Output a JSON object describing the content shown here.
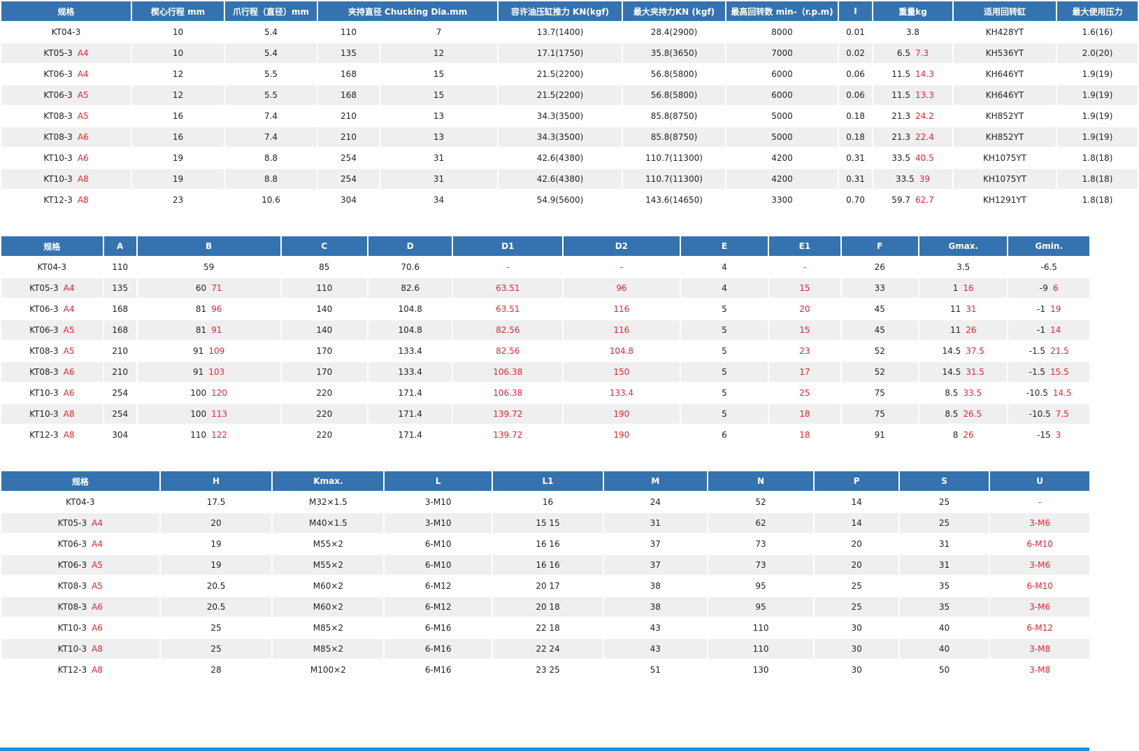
{
  "table1": {
    "headers": [
      "规格",
      "楔心行程 mm",
      "爪行程（直径）mm",
      "夹持直径 Chucking Dia.mm",
      "容许油压缸推力 KN(kgf)",
      "最大夹持力KN (kgf)",
      "最高回转数 min-（r.p.m)",
      "I",
      "重量kg",
      "适用回转缸",
      "最大使用压力"
    ],
    "rows": [
      {
        "model": "KT04-3",
        "suffix": "",
        "wedge": "10",
        "jaw": "5.4",
        "dia_max": "110",
        "dia_min": "7",
        "thrust": "13.7(1400)",
        "grip": "28.4(2900)",
        "rpm": "8000",
        "inertia": "0.01",
        "weight": "3.8",
        "weight_alt": "",
        "cylinder": "KH428YT",
        "pressure": "1.6(16)"
      },
      {
        "model": "KT05-3",
        "suffix": "A4",
        "wedge": "10",
        "jaw": "5.4",
        "dia_max": "135",
        "dia_min": "12",
        "thrust": "17.1(1750)",
        "grip": "35.8(3650)",
        "rpm": "7000",
        "inertia": "0.02",
        "weight": "6.5",
        "weight_alt": "7.3",
        "cylinder": "KH536YT",
        "pressure": "2.0(20)"
      },
      {
        "model": "KT06-3",
        "suffix": "A4",
        "wedge": "12",
        "jaw": "5.5",
        "dia_max": "168",
        "dia_min": "15",
        "thrust": "21.5(2200)",
        "grip": "56.8(5800)",
        "rpm": "6000",
        "inertia": "0.06",
        "weight": "11.5",
        "weight_alt": "14.3",
        "cylinder": "KH646YT",
        "pressure": "1.9(19)"
      },
      {
        "model": "KT06-3",
        "suffix": "A5",
        "wedge": "12",
        "jaw": "5.5",
        "dia_max": "168",
        "dia_min": "15",
        "thrust": "21.5(2200)",
        "grip": "56.8(5800)",
        "rpm": "6000",
        "inertia": "0.06",
        "weight": "11.5",
        "weight_alt": "13.3",
        "cylinder": "KH646YT",
        "pressure": "1.9(19)"
      },
      {
        "model": "KT08-3",
        "suffix": "A5",
        "wedge": "16",
        "jaw": "7.4",
        "dia_max": "210",
        "dia_min": "13",
        "thrust": "34.3(3500)",
        "grip": "85.8(8750)",
        "rpm": "5000",
        "inertia": "0.18",
        "weight": "21.3",
        "weight_alt": "24.2",
        "cylinder": "KH852YT",
        "pressure": "1.9(19)"
      },
      {
        "model": "KT08-3",
        "suffix": "A6",
        "wedge": "16",
        "jaw": "7.4",
        "dia_max": "210",
        "dia_min": "13",
        "thrust": "34.3(3500)",
        "grip": "85.8(8750)",
        "rpm": "5000",
        "inertia": "0.18",
        "weight": "21.3",
        "weight_alt": "22.4",
        "cylinder": "KH852YT",
        "pressure": "1.9(19)"
      },
      {
        "model": "KT10-3",
        "suffix": "A6",
        "wedge": "19",
        "jaw": "8.8",
        "dia_max": "254",
        "dia_min": "31",
        "thrust": "42.6(4380)",
        "grip": "110.7(11300)",
        "rpm": "4200",
        "inertia": "0.31",
        "weight": "33.5",
        "weight_alt": "40.5",
        "cylinder": "KH1075YT",
        "pressure": "1.8(18)"
      },
      {
        "model": "KT10-3",
        "suffix": "A8",
        "wedge": "19",
        "jaw": "8.8",
        "dia_max": "254",
        "dia_min": "31",
        "thrust": "42.6(4380)",
        "grip": "110.7(11300)",
        "rpm": "4200",
        "inertia": "0.31",
        "weight": "33.5",
        "weight_alt": "39",
        "cylinder": "KH1075YT",
        "pressure": "1.8(18)"
      },
      {
        "model": "KT12-3",
        "suffix": "A8",
        "wedge": "23",
        "jaw": "10.6",
        "dia_max": "304",
        "dia_min": "34",
        "thrust": "54.9(5600)",
        "grip": "143.6(14650)",
        "rpm": "3300",
        "inertia": "0.70",
        "weight": "59.7",
        "weight_alt": "62.7",
        "cylinder": "KH1291YT",
        "pressure": "1.8(18)"
      }
    ]
  },
  "table2": {
    "headers": [
      "规格",
      "A",
      "B",
      "C",
      "D",
      "D1",
      "D2",
      "E",
      "E1",
      "F",
      "Gmax.",
      "Gmin."
    ],
    "rows": [
      {
        "model": "KT04-3",
        "suffix": "",
        "A": "110",
        "B": "59",
        "B_alt": "",
        "C": "85",
        "D": "70.6",
        "D1": "-",
        "D2": "-",
        "E": "4",
        "E1": "-",
        "F": "26",
        "Gmax": "3.5",
        "Gmax_alt": "",
        "Gmin": "-6.5",
        "Gmin_alt": ""
      },
      {
        "model": "KT05-3",
        "suffix": "A4",
        "A": "135",
        "B": "60",
        "B_alt": "71",
        "C": "110",
        "D": "82.6",
        "D1": "63.51",
        "D2": "96",
        "E": "4",
        "E1": "15",
        "F": "33",
        "Gmax": "1",
        "Gmax_alt": "16",
        "Gmin": "-9",
        "Gmin_alt": "6"
      },
      {
        "model": "KT06-3",
        "suffix": "A4",
        "A": "168",
        "B": "81",
        "B_alt": "96",
        "C": "140",
        "D": "104.8",
        "D1": "63.51",
        "D2": "116",
        "E": "5",
        "E1": "20",
        "F": "45",
        "Gmax": "11",
        "Gmax_alt": "31",
        "Gmin": "-1",
        "Gmin_alt": "19"
      },
      {
        "model": "KT06-3",
        "suffix": "A5",
        "A": "168",
        "B": "81",
        "B_alt": "91",
        "C": "140",
        "D": "104.8",
        "D1": "82.56",
        "D2": "116",
        "E": "5",
        "E1": "15",
        "F": "45",
        "Gmax": "11",
        "Gmax_alt": "26",
        "Gmin": "-1",
        "Gmin_alt": "14"
      },
      {
        "model": "KT08-3",
        "suffix": "A5",
        "A": "210",
        "B": "91",
        "B_alt": "109",
        "C": "170",
        "D": "133.4",
        "D1": "82.56",
        "D2": "104.8",
        "E": "5",
        "E1": "23",
        "F": "52",
        "Gmax": "14.5",
        "Gmax_alt": "37.5",
        "Gmin": "-1.5",
        "Gmin_alt": "21.5"
      },
      {
        "model": "KT08-3",
        "suffix": "A6",
        "A": "210",
        "B": "91",
        "B_alt": "103",
        "C": "170",
        "D": "133.4",
        "D1": "106.38",
        "D2": "150",
        "E": "5",
        "E1": "17",
        "F": "52",
        "Gmax": "14.5",
        "Gmax_alt": "31.5",
        "Gmin": "-1.5",
        "Gmin_alt": "15.5"
      },
      {
        "model": "KT10-3",
        "suffix": "A6",
        "A": "254",
        "B": "100",
        "B_alt": "120",
        "C": "220",
        "D": "171.4",
        "D1": "106.38",
        "D2": "133.4",
        "E": "5",
        "E1": "25",
        "F": "75",
        "Gmax": "8.5",
        "Gmax_alt": "33.5",
        "Gmin": "-10.5",
        "Gmin_alt": "14.5"
      },
      {
        "model": "KT10-3",
        "suffix": "A8",
        "A": "254",
        "B": "100",
        "B_alt": "113",
        "C": "220",
        "D": "171.4",
        "D1": "139.72",
        "D2": "190",
        "E": "5",
        "E1": "18",
        "F": "75",
        "Gmax": "8.5",
        "Gmax_alt": "26.5",
        "Gmin": "-10.5",
        "Gmin_alt": "7.5"
      },
      {
        "model": "KT12-3",
        "suffix": "A8",
        "A": "304",
        "B": "110",
        "B_alt": "122",
        "C": "220",
        "D": "171.4",
        "D1": "139.72",
        "D2": "190",
        "E": "6",
        "E1": "18",
        "F": "91",
        "Gmax": "8",
        "Gmax_alt": "26",
        "Gmin": "-15",
        "Gmin_alt": "3"
      }
    ]
  },
  "table3": {
    "headers": [
      "规格",
      "H",
      "Kmax.",
      "L",
      "L1",
      "M",
      "N",
      "P",
      "S",
      "U"
    ],
    "rows": [
      {
        "model": "KT04-3",
        "suffix": "",
        "H": "17.5",
        "Kmax": "M32×1.5",
        "L": "3-M10",
        "L1": "16",
        "M": "24",
        "N": "52",
        "P": "14",
        "S": "25",
        "U": "-"
      },
      {
        "model": "KT05-3",
        "suffix": "A4",
        "H": "20",
        "Kmax": "M40×1.5",
        "L": "3-M10",
        "L1": "15  15",
        "M": "31",
        "N": "62",
        "P": "14",
        "S": "25",
        "U": "3-M6"
      },
      {
        "model": "KT06-3",
        "suffix": "A4",
        "H": "19",
        "Kmax": "M55×2",
        "L": "6-M10",
        "L1": "16 16",
        "M": "37",
        "N": "73",
        "P": "20",
        "S": "31",
        "U": "6-M10"
      },
      {
        "model": "KT06-3",
        "suffix": "A5",
        "H": "19",
        "Kmax": "M55×2",
        "L": "6-M10",
        "L1": "16 16",
        "M": "37",
        "N": "73",
        "P": "20",
        "S": "31",
        "U": "3-M6"
      },
      {
        "model": "KT08-3",
        "suffix": "A5",
        "H": "20.5",
        "Kmax": "M60×2",
        "L": "6-M12",
        "L1": "20 17",
        "M": "38",
        "N": "95",
        "P": "25",
        "S": "35",
        "U": "6-M10"
      },
      {
        "model": "KT08-3",
        "suffix": "A6",
        "H": "20.5",
        "Kmax": "M60×2",
        "L": "6-M12",
        "L1": "20  18",
        "M": "38",
        "N": "95",
        "P": "25",
        "S": "35",
        "U": "3-M6"
      },
      {
        "model": "KT10-3",
        "suffix": "A6",
        "H": "25",
        "Kmax": "M85×2",
        "L": "6-M16",
        "L1": "22 18",
        "M": "43",
        "N": "110",
        "P": "30",
        "S": "40",
        "U": "6-M12"
      },
      {
        "model": "KT10-3",
        "suffix": "A8",
        "H": "25",
        "Kmax": "M85×2",
        "L": "6-M16",
        "L1": "22 24",
        "M": "43",
        "N": "110",
        "P": "30",
        "S": "40",
        "U": "3-M8"
      },
      {
        "model": "KT12-3",
        "suffix": "A8",
        "H": "28",
        "Kmax": "M100×2",
        "L": "6-M16",
        "L1": "23 25",
        "M": "51",
        "N": "130",
        "P": "30",
        "S": "50",
        "U": "3-M8"
      }
    ]
  },
  "colors": {
    "header_bg": "#3572b0",
    "alt_row_bg": "#efefef",
    "highlight_text": "#e8242c",
    "bottom_bar": "#1f8ed6"
  }
}
